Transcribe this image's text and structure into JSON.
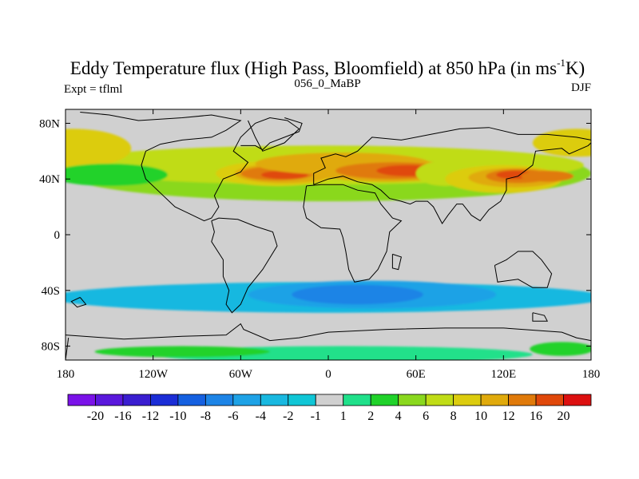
{
  "chart_data": {
    "type": "heatmap",
    "title_main": "Eddy Temperature flux (High Pass, Bloomfield) at 850 hPa (in ms",
    "title_sup": "-1",
    "title_end": "K)",
    "left_string": "Expt = tflml",
    "center_string": "056_0_MaBP",
    "right_string": "DJF",
    "x_range": [
      -180,
      180
    ],
    "y_range": [
      -90,
      90
    ],
    "x_ticks": [
      {
        "value": -180,
        "label": "180"
      },
      {
        "value": -120,
        "label": "120W"
      },
      {
        "value": -60,
        "label": "60W"
      },
      {
        "value": 0,
        "label": "0"
      },
      {
        "value": 60,
        "label": "60E"
      },
      {
        "value": 120,
        "label": "120E"
      },
      {
        "value": 180,
        "label": "180"
      }
    ],
    "y_ticks": [
      {
        "value": 80,
        "label": "80N"
      },
      {
        "value": 40,
        "label": "40N"
      },
      {
        "value": 0,
        "label": "0"
      },
      {
        "value": -40,
        "label": "40S"
      },
      {
        "value": -80,
        "label": "80S"
      }
    ],
    "colorbar": {
      "labels": [
        "-20",
        "-16",
        "-12",
        "-10",
        "-8",
        "-6",
        "-4",
        "-2",
        "-1",
        "1",
        "2",
        "4",
        "6",
        "8",
        "10",
        "12",
        "16",
        "20"
      ],
      "colors": [
        "#7a12e8",
        "#5a18dc",
        "#3a1ed0",
        "#1b2dd6",
        "#1560e0",
        "#1d84e6",
        "#1ea2e6",
        "#19b8e0",
        "#10c6d6",
        "#d0d0d0",
        "#20e08a",
        "#20d22a",
        "#8ad81e",
        "#c0dc16",
        "#dccc0e",
        "#e0aa0c",
        "#e07a0a",
        "#e0480a",
        "#dc1010"
      ]
    },
    "field_blobs": [
      {
        "lon": 0,
        "lat": 44,
        "rlon": 180,
        "rlat": 20,
        "level": 12
      },
      {
        "lon": -5,
        "lat": 50,
        "rlon": 180,
        "rlat": 14,
        "level": 13
      },
      {
        "lon": -175,
        "lat": 62,
        "rlon": 40,
        "rlat": 14,
        "level": 14
      },
      {
        "lon": 170,
        "lat": 66,
        "rlon": 30,
        "rlat": 10,
        "level": 14
      },
      {
        "lon": -150,
        "lat": 43,
        "rlon": 40,
        "rlat": 8,
        "level": 11
      },
      {
        "lon": -35,
        "lat": 44,
        "rlon": 42,
        "rlat": 9,
        "level": 14
      },
      {
        "lon": -30,
        "lat": 44,
        "rlon": 34,
        "rlat": 7,
        "level": 15
      },
      {
        "lon": -35,
        "lat": 44,
        "rlon": 25,
        "rlat": 5,
        "level": 16
      },
      {
        "lon": -30,
        "lat": 43,
        "rlon": 16,
        "rlat": 3,
        "level": 17
      },
      {
        "lon": 10,
        "lat": 51,
        "rlon": 60,
        "rlat": 8,
        "level": 15
      },
      {
        "lon": 40,
        "lat": 46,
        "rlon": 52,
        "rlat": 8,
        "level": 15
      },
      {
        "lon": 45,
        "lat": 46,
        "rlon": 40,
        "rlat": 6,
        "level": 16
      },
      {
        "lon": 55,
        "lat": 46,
        "rlon": 22,
        "rlat": 4,
        "level": 17
      },
      {
        "lon": 80,
        "lat": 44,
        "rlon": 20,
        "rlat": 9,
        "level": 13
      },
      {
        "lon": 120,
        "lat": 40,
        "rlon": 40,
        "rlat": 10,
        "level": 14
      },
      {
        "lon": 128,
        "lat": 41,
        "rlon": 32,
        "rlat": 7,
        "level": 15
      },
      {
        "lon": 130,
        "lat": 42,
        "rlon": 22,
        "rlat": 5,
        "level": 16
      },
      {
        "lon": 128,
        "lat": 43,
        "rlon": 13,
        "rlat": 3,
        "level": 17
      },
      {
        "lon": 150,
        "lat": 42,
        "rlon": 18,
        "rlat": 4,
        "level": 16
      },
      {
        "lon": 0,
        "lat": -45,
        "rlon": 190,
        "rlat": 11,
        "level": 7
      },
      {
        "lon": 30,
        "lat": -43,
        "rlon": 85,
        "rlat": 10,
        "level": 6
      },
      {
        "lon": 20,
        "lat": -43,
        "rlon": 45,
        "rlat": 7,
        "level": 5
      },
      {
        "lon": 10,
        "lat": -86,
        "rlon": 130,
        "rlat": 6,
        "level": 10
      },
      {
        "lon": -100,
        "lat": -84,
        "rlon": 60,
        "rlat": 4,
        "level": 11
      },
      {
        "lon": 160,
        "lat": -82,
        "rlon": 22,
        "rlat": 5,
        "level": 11
      }
    ],
    "continent_outlines": [
      [
        [
          -170,
          88
        ],
        [
          -150,
          86
        ],
        [
          -130,
          82
        ],
        [
          -100,
          84
        ],
        [
          -80,
          86
        ],
        [
          -60,
          82
        ],
        [
          -70,
          75
        ],
        [
          -80,
          70
        ],
        [
          -100,
          68
        ],
        [
          -115,
          65
        ],
        [
          -125,
          60
        ],
        [
          -128,
          50
        ],
        [
          -125,
          40
        ],
        [
          -115,
          30
        ],
        [
          -105,
          20
        ],
        [
          -95,
          15
        ],
        [
          -85,
          10
        ],
        [
          -80,
          12
        ],
        [
          -75,
          20
        ],
        [
          -78,
          28
        ],
        [
          -72,
          40
        ],
        [
          -60,
          45
        ],
        [
          -55,
          52
        ],
        [
          -65,
          60
        ],
        [
          -60,
          70
        ],
        [
          -50,
          80
        ],
        [
          -40,
          84
        ],
        [
          -28,
          82
        ],
        [
          -20,
          76
        ],
        [
          -30,
          66
        ],
        [
          -45,
          60
        ],
        [
          -50,
          70
        ],
        [
          -55,
          82
        ]
      ],
      [
        [
          -80,
          10
        ],
        [
          -78,
          2
        ],
        [
          -80,
          -5
        ],
        [
          -72,
          -18
        ],
        [
          -72,
          -30
        ],
        [
          -68,
          -40
        ],
        [
          -70,
          -50
        ],
        [
          -66,
          -56
        ],
        [
          -60,
          -50
        ],
        [
          -55,
          -38
        ],
        [
          -45,
          -25
        ],
        [
          -35,
          -8
        ],
        [
          -38,
          2
        ],
        [
          -50,
          6
        ],
        [
          -62,
          11
        ],
        [
          -75,
          12
        ],
        [
          -80,
          10
        ]
      ],
      [
        [
          -15,
          35
        ],
        [
          -17,
          20
        ],
        [
          -15,
          12
        ],
        [
          -5,
          5
        ],
        [
          8,
          4
        ],
        [
          10,
          -2
        ],
        [
          12,
          -12
        ],
        [
          14,
          -25
        ],
        [
          18,
          -34
        ],
        [
          28,
          -32
        ],
        [
          34,
          -25
        ],
        [
          40,
          -12
        ],
        [
          42,
          2
        ],
        [
          50,
          10
        ],
        [
          44,
          12
        ],
        [
          36,
          22
        ],
        [
          32,
          30
        ],
        [
          20,
          32
        ],
        [
          10,
          36
        ],
        [
          -5,
          36
        ],
        [
          -15,
          35
        ]
      ],
      [
        [
          -10,
          36
        ],
        [
          -10,
          44
        ],
        [
          -2,
          48
        ],
        [
          -5,
          55
        ],
        [
          5,
          58
        ],
        [
          12,
          56
        ],
        [
          20,
          60
        ],
        [
          30,
          70
        ],
        [
          50,
          68
        ],
        [
          70,
          72
        ],
        [
          90,
          76
        ],
        [
          110,
          77
        ],
        [
          130,
          72
        ],
        [
          150,
          72
        ],
        [
          170,
          70
        ],
        [
          180,
          68
        ]
      ],
      [
        [
          -10,
          36
        ],
        [
          0,
          40
        ],
        [
          10,
          42
        ],
        [
          20,
          38
        ],
        [
          30,
          36
        ],
        [
          36,
          32
        ],
        [
          42,
          26
        ],
        [
          50,
          24
        ],
        [
          56,
          22
        ],
        [
          60,
          24
        ],
        [
          68,
          24
        ],
        [
          72,
          20
        ],
        [
          78,
          8
        ],
        [
          82,
          14
        ],
        [
          88,
          22
        ],
        [
          92,
          22
        ],
        [
          98,
          14
        ],
        [
          104,
          10
        ],
        [
          110,
          18
        ],
        [
          118,
          24
        ],
        [
          122,
          32
        ],
        [
          122,
          40
        ],
        [
          130,
          42
        ],
        [
          140,
          50
        ],
        [
          142,
          60
        ],
        [
          160,
          62
        ],
        [
          165,
          58
        ],
        [
          178,
          64
        ],
        [
          180,
          66
        ]
      ],
      [
        [
          114,
          -22
        ],
        [
          116,
          -34
        ],
        [
          130,
          -32
        ],
        [
          140,
          -38
        ],
        [
          150,
          -38
        ],
        [
          153,
          -28
        ],
        [
          146,
          -18
        ],
        [
          140,
          -12
        ],
        [
          130,
          -12
        ],
        [
          122,
          -18
        ],
        [
          114,
          -22
        ]
      ],
      [
        [
          -60,
          64
        ],
        [
          -50,
          64
        ],
        [
          -45,
          61
        ],
        [
          -40,
          66
        ],
        [
          -30,
          70
        ],
        [
          -20,
          74
        ],
        [
          -18,
          80
        ],
        [
          -30,
          84
        ]
      ],
      [
        [
          44,
          -14
        ],
        [
          50,
          -16
        ],
        [
          48,
          -25
        ],
        [
          44,
          -24
        ],
        [
          44,
          -14
        ]
      ],
      [
        [
          -180,
          -72
        ],
        [
          -140,
          -75
        ],
        [
          -100,
          -73
        ],
        [
          -70,
          -72
        ],
        [
          -60,
          -64
        ],
        [
          -58,
          -68
        ],
        [
          -40,
          -76
        ],
        [
          -20,
          -74
        ],
        [
          0,
          -70
        ],
        [
          40,
          -68
        ],
        [
          80,
          -67
        ],
        [
          120,
          -67
        ],
        [
          160,
          -70
        ],
        [
          170,
          -74
        ],
        [
          180,
          -76
        ]
      ],
      [
        [
          -178,
          -74
        ],
        [
          -180,
          -90
        ]
      ],
      [
        [
          -170,
          -45
        ],
        [
          -176,
          -48
        ],
        [
          -172,
          -52
        ],
        [
          -166,
          -50
        ],
        [
          -170,
          -45
        ]
      ],
      [
        [
          140,
          -56
        ],
        [
          148,
          -58
        ],
        [
          150,
          -62
        ],
        [
          140,
          -62
        ],
        [
          140,
          -56
        ]
      ]
    ]
  }
}
